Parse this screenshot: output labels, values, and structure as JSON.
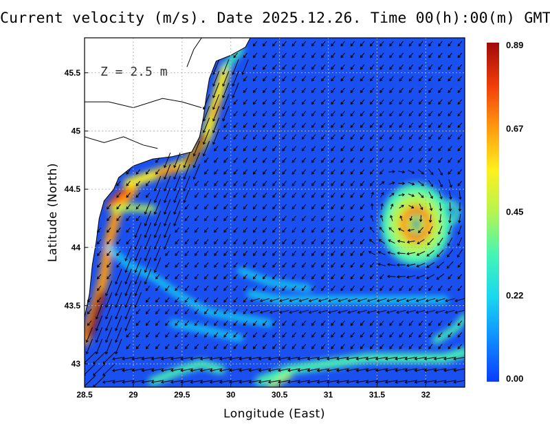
{
  "title": "Current velocity (m/s). Date 2025.12.26. Time 00(h):00(m) GMT",
  "depth_label": "Z = 2.5 m",
  "colors": {
    "background_water": "#1a4ff0",
    "land": "#ffffff",
    "coast": "#000000",
    "arrows": "#000000",
    "grid": "#b5b5b5"
  },
  "colorbar": {
    "ticks": [
      "0.89",
      "0.67",
      "0.45",
      "0.22",
      "0.00"
    ],
    "min": 0.0,
    "max": 0.89,
    "palette": [
      "#0a3cff",
      "#0f8cff",
      "#19d7f0",
      "#46f5b4",
      "#b4f550",
      "#fff01e",
      "#ff9a0f",
      "#f03c0a",
      "#a00a0a"
    ]
  },
  "chart_data": {
    "type": "heatmap",
    "title": "Current velocity (m/s). Date 2025.12.26. Time 00(h):00(m) GMT",
    "xlabel": "Longitude (East)",
    "ylabel": "Latitude (North)",
    "xlim": [
      28.5,
      32.4
    ],
    "ylim": [
      42.8,
      45.8
    ],
    "x_ticks": [
      "28.5",
      "29",
      "29.5",
      "30",
      "30.5",
      "31",
      "31.5",
      "32"
    ],
    "y_ticks": [
      "43",
      "43.5",
      "44",
      "44.5",
      "45",
      "45.5"
    ],
    "grid": true,
    "color_scale_range": [
      0.0,
      0.89
    ],
    "features": [
      {
        "name": "coastal current",
        "peak_speed": 0.85,
        "lon": 28.6,
        "lat": 43.3
      },
      {
        "name": "coastal current",
        "peak_speed": 0.8,
        "lon": 29.65,
        "lat": 44.8
      },
      {
        "name": "coastal current",
        "peak_speed": 0.75,
        "lon": 28.85,
        "lat": 44.4
      },
      {
        "name": "anticyclonic eddy",
        "peak_speed": 0.65,
        "lon": 31.9,
        "lat": 44.2
      },
      {
        "name": "southern jet",
        "peak_speed": 0.4,
        "lon": 30.9,
        "lat": 42.95
      }
    ]
  }
}
